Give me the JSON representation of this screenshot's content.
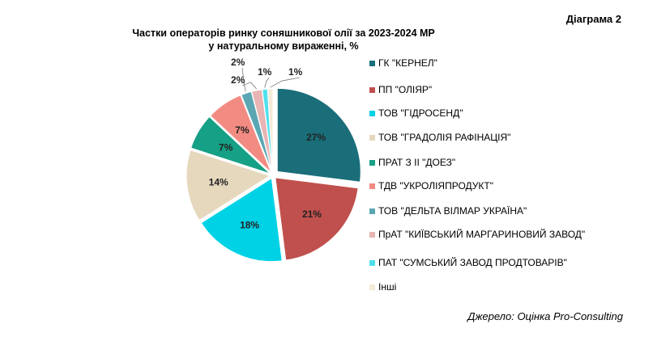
{
  "header": {
    "diagram_label": "Діаграма 2",
    "title_line1": "Частки операторів ринку соняшникової олії за 2023-2024 МР",
    "title_line2": "у натуральному вираженні, %"
  },
  "chart_data": {
    "type": "pie",
    "title": "Частки операторів ринку соняшникової олії за 2023-2024 МР у натуральному вираженні, %",
    "legend_position": "right",
    "slices": [
      {
        "label": "ГК \"КЕРНЕЛ\"",
        "value": 27,
        "value_label": "27%",
        "color": "#1a6e7a"
      },
      {
        "label": "ПП \"ОЛІЯР\"",
        "value": 21,
        "value_label": "21%",
        "color": "#c0504d"
      },
      {
        "label": "ТОВ \"ГІДРОСЕНД\"",
        "value": 18,
        "value_label": "18%",
        "color": "#00d2e6"
      },
      {
        "label": "ТОВ \"ГРАДОЛІЯ РАФІНАЦІЯ\"",
        "value": 14,
        "value_label": "14%",
        "color": "#e5d8bd"
      },
      {
        "label": "ПРАТ З ІІ \"ДОЕЗ\"",
        "value": 7,
        "value_label": "7%",
        "color": "#16a085"
      },
      {
        "label": "ТДВ \"УКРОЛІЯПРОДУКТ\"",
        "value": 7,
        "value_label": "7%",
        "color": "#f28b82"
      },
      {
        "label": "ТОВ \"ДЕЛЬТА ВІЛМАР УКРАЇНА\"",
        "value": 2,
        "value_label": "2%",
        "color": "#5aa7b3"
      },
      {
        "label": "ПрАТ \"КИЇВСЬКИЙ МАРГАРИНОВИЙ ЗАВОД\"",
        "value": 2,
        "value_label": "2%",
        "color": "#e8b4b4"
      },
      {
        "label": "ПАТ \"СУМСЬКИЙ ЗАВОД ПРОДТОВАРІВ\"",
        "value": 1,
        "value_label": "1%",
        "color": "#4fe0ec"
      },
      {
        "label": "Інші",
        "value": 1,
        "value_label": "1%",
        "color": "#f3ead7"
      }
    ]
  },
  "footer": {
    "source": "Джерело: Оцінка Pro-Consulting"
  }
}
